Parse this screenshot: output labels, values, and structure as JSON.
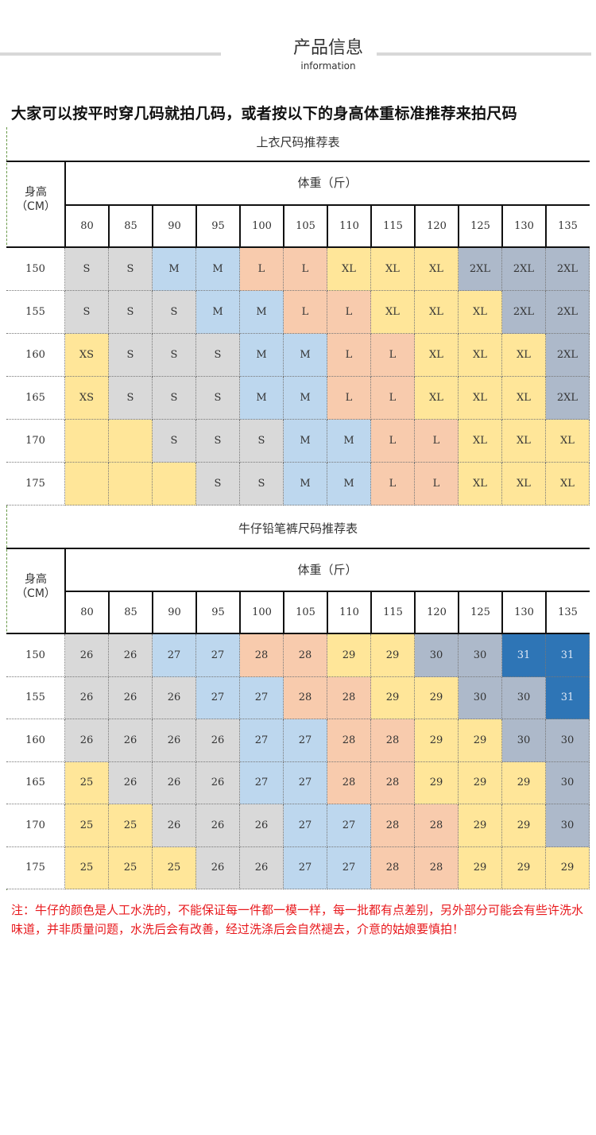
{
  "header": {
    "title": "产品信息",
    "subtitle": "information"
  },
  "intro": "大家可以按平时穿几码就拍几码，或者按以下的身高体重标准推荐来拍尺码",
  "colors": {
    "gray": "#d9d9d9",
    "blue": "#bdd7ee",
    "salmon": "#f8cbad",
    "yellow": "#ffe699",
    "slate": "#adb9ca",
    "darkblue": "#2e75b6"
  },
  "tops_table": {
    "title": "上衣尺码推荐表",
    "height_label": "身高\n（CM）",
    "weight_label": "体重（斤）",
    "weights": [
      "80",
      "85",
      "90",
      "95",
      "100",
      "105",
      "110",
      "115",
      "120",
      "125",
      "130",
      "135"
    ],
    "rows": [
      {
        "height": "150",
        "cells": [
          "S",
          "S",
          "M",
          "M",
          "L",
          "L",
          "XL",
          "XL",
          "XL",
          "2XL",
          "2XL",
          "2XL"
        ]
      },
      {
        "height": "155",
        "cells": [
          "S",
          "S",
          "S",
          "M",
          "M",
          "L",
          "L",
          "XL",
          "XL",
          "XL",
          "2XL",
          "2XL"
        ]
      },
      {
        "height": "160",
        "cells": [
          "XS",
          "S",
          "S",
          "S",
          "M",
          "M",
          "L",
          "L",
          "XL",
          "XL",
          "XL",
          "2XL"
        ]
      },
      {
        "height": "165",
        "cells": [
          "XS",
          "S",
          "S",
          "S",
          "M",
          "M",
          "L",
          "L",
          "XL",
          "XL",
          "XL",
          "2XL"
        ]
      },
      {
        "height": "170",
        "cells": [
          "",
          "",
          "S",
          "S",
          "S",
          "M",
          "M",
          "L",
          "L",
          "XL",
          "XL",
          "XL"
        ]
      },
      {
        "height": "175",
        "cells": [
          "",
          "",
          "",
          "S",
          "S",
          "M",
          "M",
          "L",
          "L",
          "XL",
          "XL",
          "XL"
        ]
      }
    ]
  },
  "jeans_table": {
    "title": "牛仔铅笔裤尺码推荐表",
    "height_label": "身高\n（CM）",
    "weight_label": "体重（斤）",
    "weights": [
      "80",
      "85",
      "90",
      "95",
      "100",
      "105",
      "110",
      "115",
      "120",
      "125",
      "130",
      "135"
    ],
    "rows": [
      {
        "height": "150",
        "cells": [
          "26",
          "26",
          "27",
          "27",
          "28",
          "28",
          "29",
          "29",
          "30",
          "30",
          "31",
          "31"
        ]
      },
      {
        "height": "155",
        "cells": [
          "26",
          "26",
          "26",
          "27",
          "27",
          "28",
          "28",
          "29",
          "29",
          "30",
          "30",
          "31"
        ]
      },
      {
        "height": "160",
        "cells": [
          "26",
          "26",
          "26",
          "26",
          "27",
          "27",
          "28",
          "28",
          "29",
          "29",
          "30",
          "30"
        ]
      },
      {
        "height": "165",
        "cells": [
          "25",
          "26",
          "26",
          "26",
          "27",
          "27",
          "28",
          "28",
          "29",
          "29",
          "29",
          "30"
        ]
      },
      {
        "height": "170",
        "cells": [
          "25",
          "25",
          "26",
          "26",
          "26",
          "27",
          "27",
          "28",
          "28",
          "29",
          "29",
          "30"
        ]
      },
      {
        "height": "175",
        "cells": [
          "25",
          "25",
          "25",
          "26",
          "26",
          "27",
          "27",
          "28",
          "28",
          "29",
          "29",
          "29"
        ]
      }
    ]
  },
  "note": "注：牛仔的颜色是人工水洗的，不能保证每一件都一模一样，每一批都有点差别，另外部分可能会有些许洗水味道，并非质量问题，水洗后会有改善，经过洗涤后会自然褪去，介意的姑娘要慎拍！"
}
